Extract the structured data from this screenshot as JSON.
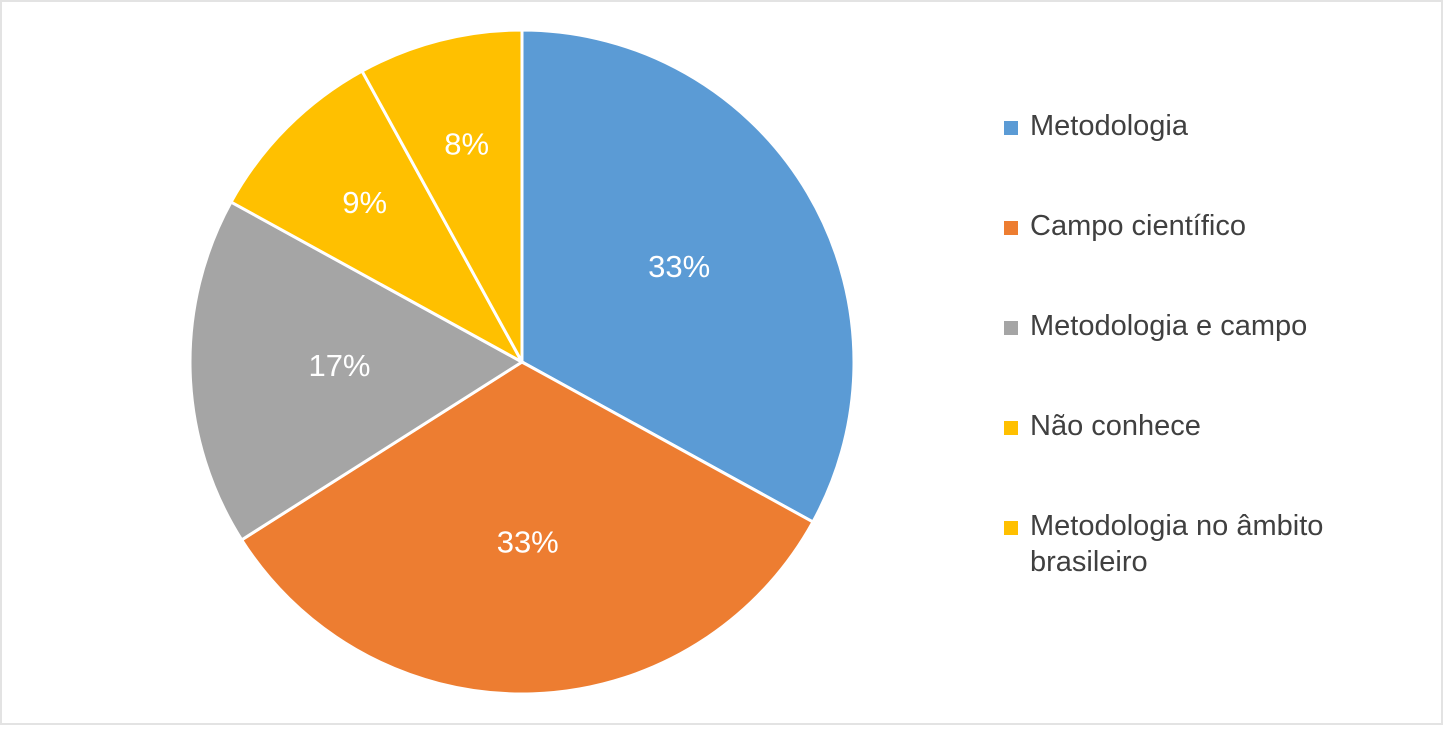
{
  "chart_data": {
    "type": "pie",
    "categories": [
      "Metodologia",
      "Campo científico",
      "Metodologia e campo",
      "Não conhece",
      "Metodologia no âmbito brasileiro"
    ],
    "values": [
      33,
      33,
      17,
      9,
      8
    ],
    "value_labels": [
      "33%",
      "33%",
      "17%",
      "9%",
      "8%"
    ],
    "colors": [
      "#5b9bd5",
      "#ed7d31",
      "#a5a5a5",
      "#ffc000",
      "#ffc000"
    ],
    "legend": "right"
  }
}
